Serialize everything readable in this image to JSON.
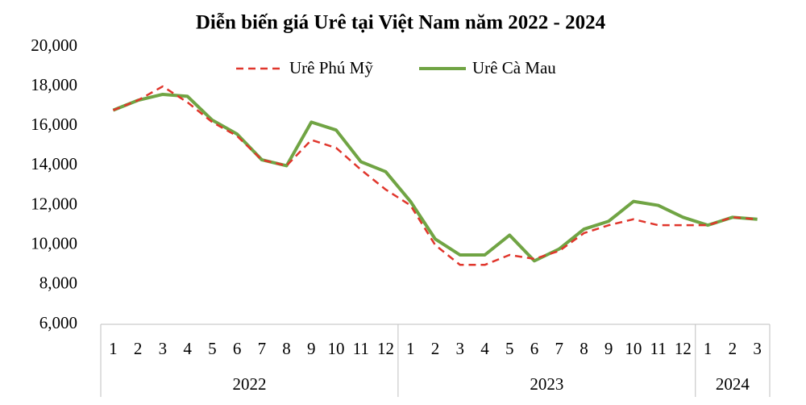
{
  "chart_data": {
    "type": "line",
    "title": "Diễn biến giá Urê  tại Việt Nam năm 2022 - 2024",
    "categories": [
      "1",
      "2",
      "3",
      "4",
      "5",
      "6",
      "7",
      "8",
      "9",
      "10",
      "11",
      "12",
      "1",
      "2",
      "3",
      "4",
      "5",
      "6",
      "7",
      "8",
      "9",
      "10",
      "11",
      "12",
      "1",
      "2",
      "3"
    ],
    "year_groups": [
      {
        "label": "2022",
        "count": 12
      },
      {
        "label": "2023",
        "count": 12
      },
      {
        "label": "2024",
        "count": 3
      }
    ],
    "series": [
      {
        "name": "Urê Phú Mỹ",
        "color": "#e0362c",
        "dashed": true,
        "values": [
          16800,
          17300,
          18000,
          17200,
          16200,
          15500,
          14300,
          14000,
          15300,
          14900,
          13800,
          12800,
          12000,
          10000,
          9000,
          9000,
          9500,
          9300,
          9700,
          10600,
          11000,
          11300,
          11000,
          11000,
          11000,
          11400,
          11300
        ]
      },
      {
        "name": "Urê Cà Mau",
        "color": "#70a444",
        "dashed": false,
        "values": [
          16800,
          17300,
          17600,
          17500,
          16300,
          15600,
          14300,
          14000,
          16200,
          15800,
          14200,
          13700,
          12200,
          10300,
          9500,
          9500,
          10500,
          9200,
          9800,
          10800,
          11200,
          12200,
          12000,
          11400,
          11000,
          11400,
          11300
        ]
      }
    ],
    "ylim": [
      6000,
      20000
    ],
    "yticks": [
      {
        "value": 6000,
        "label": "6,000"
      },
      {
        "value": 8000,
        "label": "8,000"
      },
      {
        "value": 10000,
        "label": "10,000"
      },
      {
        "value": 12000,
        "label": "12,000"
      },
      {
        "value": 14000,
        "label": "14,000"
      },
      {
        "value": 16000,
        "label": "16,000"
      },
      {
        "value": 18000,
        "label": "18,000"
      },
      {
        "value": 20000,
        "label": "20,000"
      }
    ],
    "legend": "top"
  }
}
